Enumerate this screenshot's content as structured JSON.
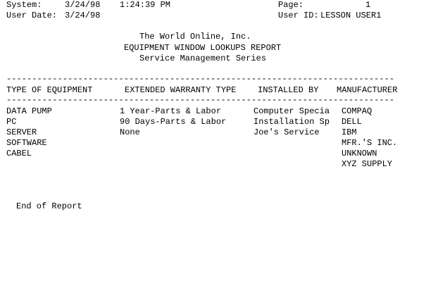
{
  "header": {
    "system_label": "System:",
    "system_date": "3/24/98",
    "system_time": "1:24:39 PM",
    "page_label": "Page:",
    "page_number": "1",
    "user_date_label": "User Date:",
    "user_date": "3/24/98",
    "user_id_label": "User ID:",
    "user_id": "LESSON USER1"
  },
  "title": {
    "company": "The World Online, Inc.",
    "report": "EQUIPMENT WINDOW LOOKUPS REPORT",
    "series": "Service Management Series"
  },
  "divider": "----------------------------------------------------------------------------",
  "columns": [
    "TYPE OF EQUIPMENT",
    "EXTENDED WARRANTY TYPE",
    "INSTALLED BY",
    "MANUFACTURER"
  ],
  "equipment": [
    "DATA PUMP",
    "PC",
    "SERVER",
    "SOFTWARE",
    "CABEL"
  ],
  "warranty": [
    "1 Year-Parts & Labor",
    "90 Days-Parts & Labor",
    "None"
  ],
  "installed_by": [
    "Computer Specia",
    "Installation Sp",
    "Joe's Service"
  ],
  "manufacturer": [
    "COMPAQ",
    "DELL",
    "IBM",
    "MFR.'S INC.",
    "UNKNOWN",
    "XYZ SUPPLY"
  ],
  "footer": "End of Report"
}
